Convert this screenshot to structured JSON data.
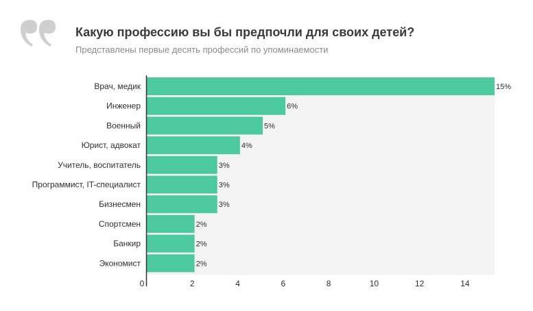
{
  "header": {
    "quote_icon": "quote-icon",
    "title": "Какую профессию вы бы предпочли для своих детей?",
    "subtitle": "Представлены первые десять профессий по упоминаемости"
  },
  "colors": {
    "bar": "#4dc9a0",
    "quote": "#cfcfcf",
    "axis": "#333333",
    "grid": "#f3f3f3"
  },
  "chart_data": {
    "type": "bar",
    "orientation": "horizontal",
    "title": "Какую профессию вы бы предпочли для своих детей?",
    "subtitle": "Представлены первые десять профессий по упоминаемости",
    "categories": [
      "Врач, медик",
      "Инженер",
      "Военный",
      "Юрист, адвокат",
      "Учитель, воспитатель",
      "Программист, IT-специалист",
      "Бизнесмен",
      "Спортсмен",
      "Банкир",
      "Экономист"
    ],
    "values": [
      15.3,
      6.1,
      5.1,
      4.1,
      3.1,
      3.1,
      3.1,
      2.1,
      2.1,
      2.1
    ],
    "value_labels": [
      "15%",
      "6%",
      "5%",
      "4%",
      "3%",
      "3%",
      "3%",
      "2%",
      "2%",
      "2%"
    ],
    "xlim": [
      0,
      15.3
    ],
    "xticks": [
      0,
      2,
      4,
      6,
      8,
      10,
      12,
      14
    ],
    "xlabel": "",
    "ylabel": "",
    "legend": "none"
  }
}
